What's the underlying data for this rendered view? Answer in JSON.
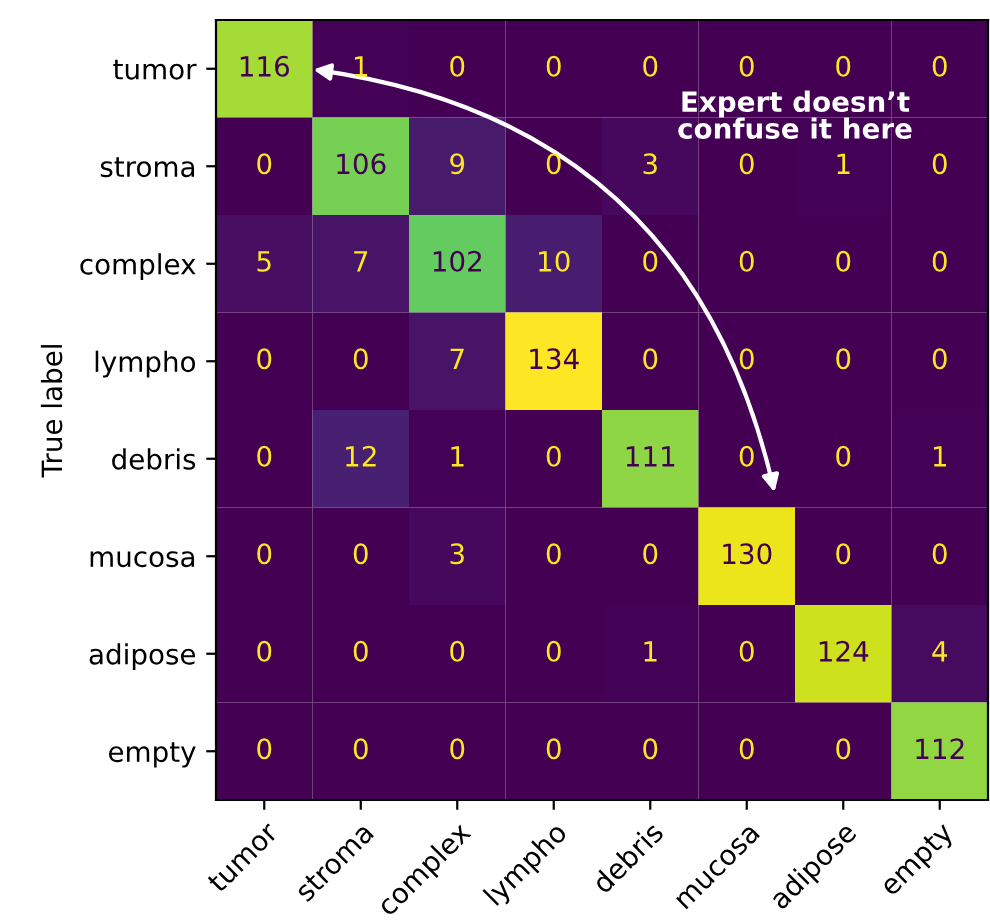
{
  "chart_data": {
    "type": "heatmap",
    "ylabel": "True label",
    "categories": [
      "tumor",
      "stroma",
      "complex",
      "lympho",
      "debris",
      "mucosa",
      "adipose",
      "empty"
    ],
    "y_categories": [
      "tumor",
      "stroma",
      "complex",
      "lympho",
      "debris",
      "mucosa",
      "adipose",
      "empty"
    ],
    "cells": [
      [
        116,
        1,
        0,
        0,
        0,
        0,
        0,
        0
      ],
      [
        0,
        106,
        9,
        0,
        3,
        0,
        1,
        0
      ],
      [
        5,
        7,
        102,
        10,
        0,
        0,
        0,
        0
      ],
      [
        0,
        0,
        7,
        134,
        0,
        0,
        0,
        0
      ],
      [
        0,
        12,
        1,
        0,
        111,
        0,
        0,
        1
      ],
      [
        0,
        0,
        3,
        0,
        0,
        130,
        0,
        0
      ],
      [
        0,
        0,
        0,
        0,
        1,
        0,
        124,
        4
      ],
      [
        0,
        0,
        0,
        0,
        0,
        0,
        0,
        112
      ]
    ],
    "data_labels": true,
    "annotations": [
      "Expert doesn’t confuse it here"
    ]
  }
}
